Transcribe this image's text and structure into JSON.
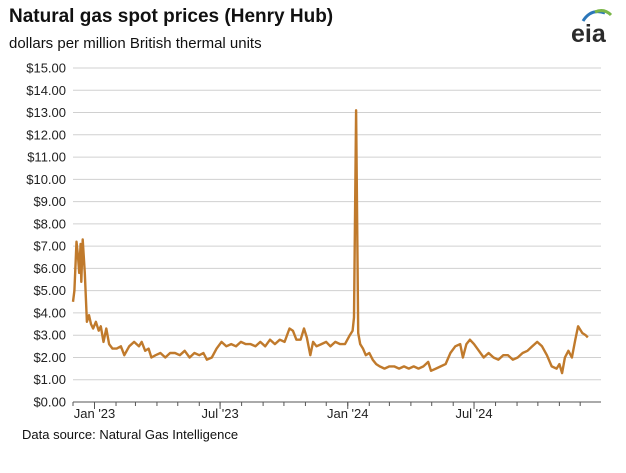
{
  "header": {
    "title": "Natural gas spot prices (Henry Hub)",
    "subtitle": "dollars per million British thermal units",
    "logo_text": "eia"
  },
  "footer": {
    "source": "Data source: Natural Gas Intelligence"
  },
  "colors": {
    "line": "#c07a2c",
    "grid": "#d0d0d0",
    "axis": "#555555",
    "logo_blue": "#2b76b9",
    "logo_green": "#7ab648"
  },
  "chart_data": {
    "type": "line",
    "title": "Natural gas spot prices (Henry Hub)",
    "ylabel": "dollars per million British thermal units",
    "xlabel": "",
    "ylim": [
      0,
      15
    ],
    "xlim": [
      "2022-12-01",
      "2024-12-31"
    ],
    "grid": true,
    "y_ticks": [
      "$0.00",
      "$1.00",
      "$2.00",
      "$3.00",
      "$4.00",
      "$5.00",
      "$6.00",
      "$7.00",
      "$8.00",
      "$9.00",
      "$10.00",
      "$11.00",
      "$12.00",
      "$13.00",
      "$14.00",
      "$15.00"
    ],
    "x_ticks": [
      {
        "date": "2023-01-01",
        "label": "Jan '23"
      },
      {
        "date": "2023-07-01",
        "label": "Jul '23"
      },
      {
        "date": "2024-01-01",
        "label": "Jan '24"
      },
      {
        "date": "2024-07-01",
        "label": "Jul '24"
      }
    ],
    "series": [
      {
        "color": "#c07a2c",
        "points": [
          [
            "2022-12-01",
            4.5
          ],
          [
            "2022-12-03",
            5.0
          ],
          [
            "2022-12-06",
            7.2
          ],
          [
            "2022-12-08",
            6.6
          ],
          [
            "2022-12-10",
            5.8
          ],
          [
            "2022-12-12",
            7.1
          ],
          [
            "2022-12-13",
            5.4
          ],
          [
            "2022-12-15",
            7.3
          ],
          [
            "2022-12-18",
            5.8
          ],
          [
            "2022-12-21",
            3.6
          ],
          [
            "2022-12-24",
            3.9
          ],
          [
            "2022-12-27",
            3.5
          ],
          [
            "2022-12-30",
            3.3
          ],
          [
            "2023-01-03",
            3.6
          ],
          [
            "2023-01-07",
            3.2
          ],
          [
            "2023-01-10",
            3.4
          ],
          [
            "2023-01-14",
            2.7
          ],
          [
            "2023-01-18",
            3.3
          ],
          [
            "2023-01-22",
            2.6
          ],
          [
            "2023-01-27",
            2.4
          ],
          [
            "2023-02-02",
            2.4
          ],
          [
            "2023-02-08",
            2.5
          ],
          [
            "2023-02-13",
            2.1
          ],
          [
            "2023-02-20",
            2.5
          ],
          [
            "2023-02-27",
            2.7
          ],
          [
            "2023-03-06",
            2.5
          ],
          [
            "2023-03-10",
            2.7
          ],
          [
            "2023-03-15",
            2.3
          ],
          [
            "2023-03-20",
            2.4
          ],
          [
            "2023-03-24",
            2.0
          ],
          [
            "2023-03-30",
            2.1
          ],
          [
            "2023-04-06",
            2.2
          ],
          [
            "2023-04-13",
            2.0
          ],
          [
            "2023-04-20",
            2.2
          ],
          [
            "2023-04-27",
            2.2
          ],
          [
            "2023-05-04",
            2.1
          ],
          [
            "2023-05-11",
            2.3
          ],
          [
            "2023-05-18",
            2.0
          ],
          [
            "2023-05-25",
            2.2
          ],
          [
            "2023-06-01",
            2.1
          ],
          [
            "2023-06-07",
            2.2
          ],
          [
            "2023-06-12",
            1.9
          ],
          [
            "2023-06-19",
            2.0
          ],
          [
            "2023-06-26",
            2.4
          ],
          [
            "2023-07-03",
            2.7
          ],
          [
            "2023-07-10",
            2.5
          ],
          [
            "2023-07-17",
            2.6
          ],
          [
            "2023-07-24",
            2.5
          ],
          [
            "2023-07-31",
            2.7
          ],
          [
            "2023-08-07",
            2.6
          ],
          [
            "2023-08-14",
            2.6
          ],
          [
            "2023-08-21",
            2.5
          ],
          [
            "2023-08-28",
            2.7
          ],
          [
            "2023-09-04",
            2.5
          ],
          [
            "2023-09-11",
            2.8
          ],
          [
            "2023-09-18",
            2.6
          ],
          [
            "2023-09-25",
            2.8
          ],
          [
            "2023-10-02",
            2.7
          ],
          [
            "2023-10-09",
            3.3
          ],
          [
            "2023-10-14",
            3.2
          ],
          [
            "2023-10-19",
            2.8
          ],
          [
            "2023-10-25",
            2.8
          ],
          [
            "2023-10-30",
            3.3
          ],
          [
            "2023-11-03",
            2.9
          ],
          [
            "2023-11-08",
            2.1
          ],
          [
            "2023-11-12",
            2.7
          ],
          [
            "2023-11-17",
            2.5
          ],
          [
            "2023-11-24",
            2.6
          ],
          [
            "2023-12-01",
            2.7
          ],
          [
            "2023-12-07",
            2.5
          ],
          [
            "2023-12-14",
            2.7
          ],
          [
            "2023-12-21",
            2.6
          ],
          [
            "2023-12-28",
            2.6
          ],
          [
            "2024-01-04",
            3.0
          ],
          [
            "2024-01-08",
            3.2
          ],
          [
            "2024-01-10",
            3.8
          ],
          [
            "2024-01-13",
            13.1
          ],
          [
            "2024-01-16",
            3.1
          ],
          [
            "2024-01-19",
            2.6
          ],
          [
            "2024-01-23",
            2.4
          ],
          [
            "2024-01-27",
            2.1
          ],
          [
            "2024-02-01",
            2.2
          ],
          [
            "2024-02-06",
            1.9
          ],
          [
            "2024-02-11",
            1.7
          ],
          [
            "2024-02-16",
            1.6
          ],
          [
            "2024-02-23",
            1.5
          ],
          [
            "2024-03-01",
            1.6
          ],
          [
            "2024-03-08",
            1.6
          ],
          [
            "2024-03-15",
            1.5
          ],
          [
            "2024-03-22",
            1.6
          ],
          [
            "2024-03-29",
            1.5
          ],
          [
            "2024-04-05",
            1.6
          ],
          [
            "2024-04-12",
            1.5
          ],
          [
            "2024-04-19",
            1.6
          ],
          [
            "2024-04-26",
            1.8
          ],
          [
            "2024-04-30",
            1.4
          ],
          [
            "2024-05-07",
            1.5
          ],
          [
            "2024-05-14",
            1.6
          ],
          [
            "2024-05-21",
            1.7
          ],
          [
            "2024-05-28",
            2.2
          ],
          [
            "2024-06-04",
            2.5
          ],
          [
            "2024-06-11",
            2.6
          ],
          [
            "2024-06-15",
            2.0
          ],
          [
            "2024-06-20",
            2.6
          ],
          [
            "2024-06-25",
            2.8
          ],
          [
            "2024-07-01",
            2.6
          ],
          [
            "2024-07-08",
            2.3
          ],
          [
            "2024-07-15",
            2.0
          ],
          [
            "2024-07-22",
            2.2
          ],
          [
            "2024-07-29",
            2.0
          ],
          [
            "2024-08-05",
            1.9
          ],
          [
            "2024-08-12",
            2.1
          ],
          [
            "2024-08-19",
            2.1
          ],
          [
            "2024-08-26",
            1.9
          ],
          [
            "2024-09-02",
            2.0
          ],
          [
            "2024-09-09",
            2.2
          ],
          [
            "2024-09-16",
            2.3
          ],
          [
            "2024-09-23",
            2.5
          ],
          [
            "2024-09-30",
            2.7
          ],
          [
            "2024-10-07",
            2.5
          ],
          [
            "2024-10-14",
            2.1
          ],
          [
            "2024-10-21",
            1.6
          ],
          [
            "2024-10-28",
            1.5
          ],
          [
            "2024-11-01",
            1.7
          ],
          [
            "2024-11-05",
            1.3
          ],
          [
            "2024-11-09",
            2.0
          ],
          [
            "2024-11-14",
            2.3
          ],
          [
            "2024-11-19",
            2.0
          ],
          [
            "2024-11-24",
            2.8
          ],
          [
            "2024-11-28",
            3.4
          ],
          [
            "2024-12-04",
            3.1
          ],
          [
            "2024-12-09",
            3.0
          ],
          [
            "2024-12-12",
            2.9
          ]
        ]
      }
    ]
  }
}
